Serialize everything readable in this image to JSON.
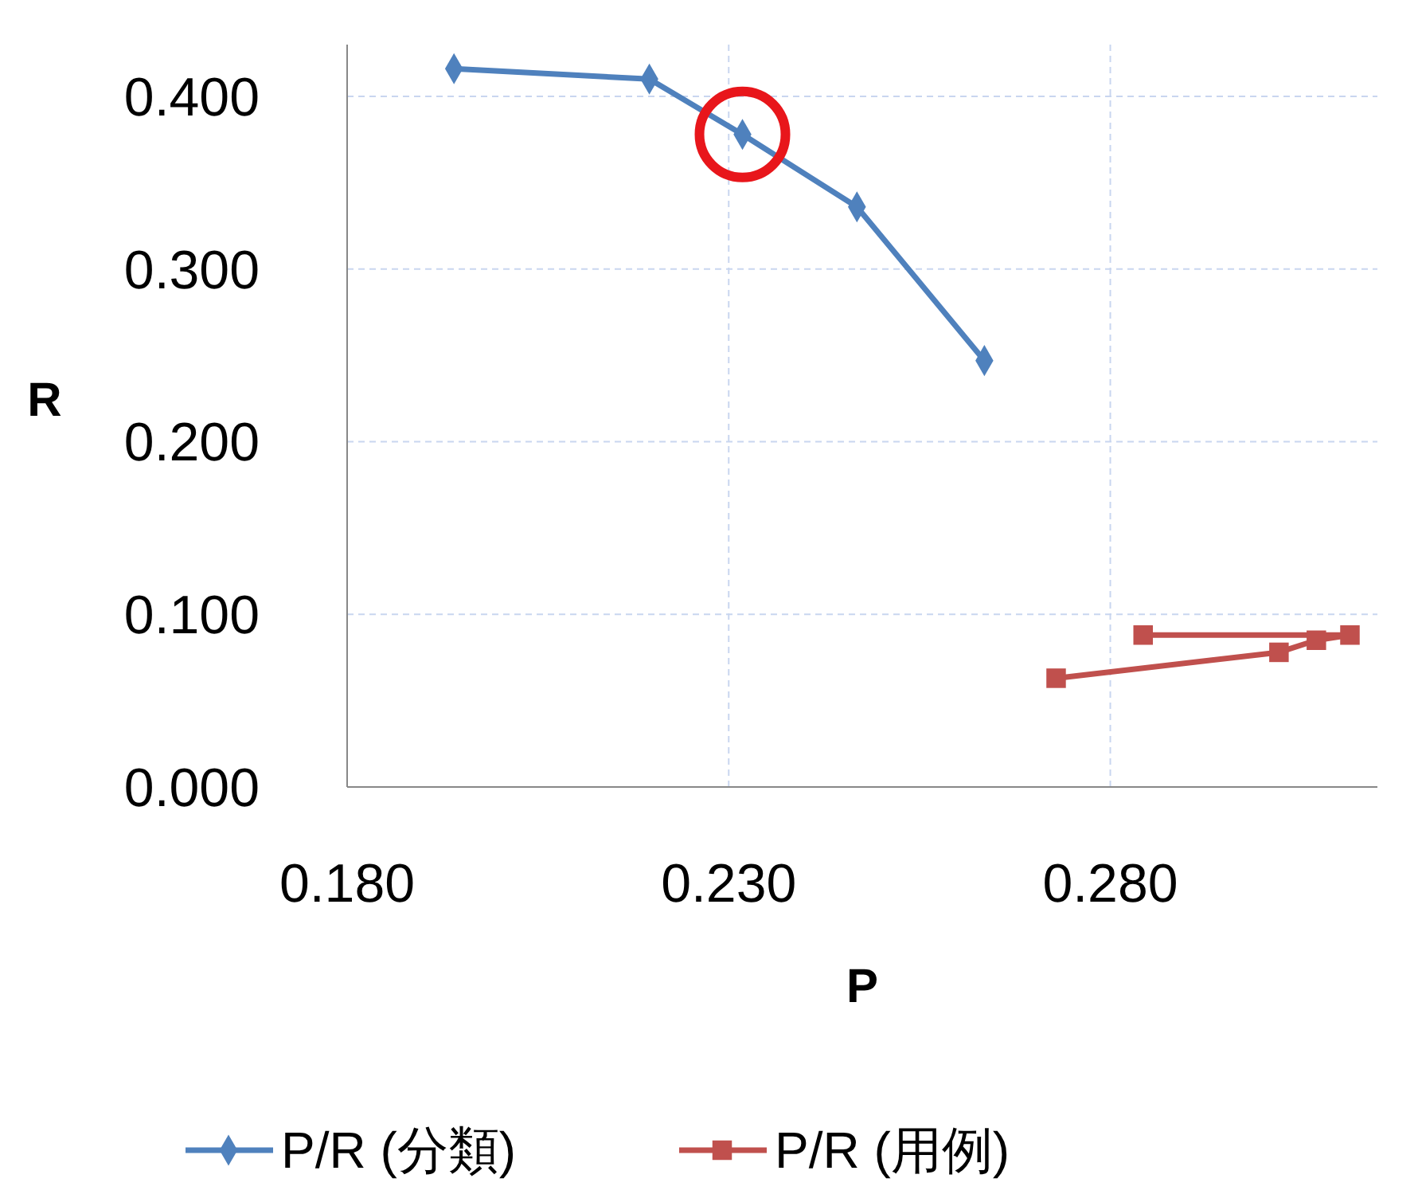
{
  "chart_data": {
    "type": "line",
    "xlabel": "P",
    "ylabel": "R",
    "xlim": [
      0.18,
      0.315
    ],
    "xticks": [
      {
        "value": 0.18,
        "label": "0.180"
      },
      {
        "value": 0.23,
        "label": "0.230"
      },
      {
        "value": 0.28,
        "label": "0.280"
      }
    ],
    "ylim": [
      0,
      0.43
    ],
    "yticks": [
      {
        "value": 0,
        "label": "0.000"
      },
      {
        "value": 0.1,
        "label": "0.100"
      },
      {
        "value": 0.2,
        "label": "0.200"
      },
      {
        "value": 0.3,
        "label": "0.300"
      },
      {
        "value": 0.4,
        "label": "0.400"
      }
    ],
    "grid": true,
    "legend": "bottom",
    "series": [
      {
        "name": "P/R (分類)",
        "color": "#4f81bd",
        "marker": "diamond",
        "x": [
          0.194,
          0.2196,
          0.2318,
          0.2468,
          0.2635
        ],
        "values": [
          0.416,
          0.41,
          0.378,
          0.336,
          0.247
        ]
      },
      {
        "name": "P/R (用例)",
        "color": "#c0504d",
        "marker": "square",
        "x": [
          0.2729,
          0.3021,
          0.307,
          0.3114,
          0.2843
        ],
        "values": [
          0.063,
          0.078,
          0.085,
          0.088,
          0.088
        ]
      }
    ]
  }
}
